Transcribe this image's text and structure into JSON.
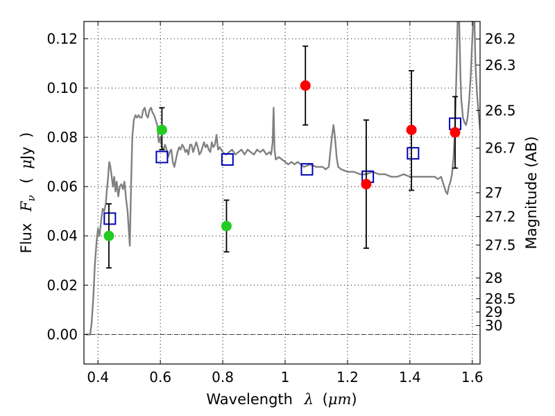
{
  "chart_data": {
    "type": "scatter",
    "title": "",
    "xlabel": {
      "text": "Wavelength",
      "symbol": "λ",
      "unit_open": "(",
      "unit": "μm",
      "unit_close": ")"
    },
    "ylabel": {
      "text": "Flux",
      "symbol": "F",
      "subscript": "ν",
      "unit_open": "(",
      "unit_prefix": "μ",
      "unit": "Jy",
      "unit_close": ")"
    },
    "y2label": "Magnitude (AB)",
    "xlim": [
      0.355,
      1.625
    ],
    "ylim": [
      -0.012,
      0.127
    ],
    "grid": "dotted",
    "zero_line": true,
    "x_ticks": [
      {
        "value": 0.4,
        "label": "0.4"
      },
      {
        "value": 0.6,
        "label": "0.6"
      },
      {
        "value": 0.8,
        "label": "0.8"
      },
      {
        "value": 1.0,
        "label": "1"
      },
      {
        "value": 1.2,
        "label": "1.2"
      },
      {
        "value": 1.4,
        "label": "1.4"
      },
      {
        "value": 1.6,
        "label": "1.6"
      }
    ],
    "y_ticks": [
      {
        "value": 0.0,
        "label": "0.00"
      },
      {
        "value": 0.02,
        "label": "0.02"
      },
      {
        "value": 0.04,
        "label": "0.04"
      },
      {
        "value": 0.06,
        "label": "0.06"
      },
      {
        "value": 0.08,
        "label": "0.08"
      },
      {
        "value": 0.1,
        "label": "0.10"
      },
      {
        "value": 0.12,
        "label": "0.12"
      }
    ],
    "mag_ticks": [
      {
        "label": "26.2",
        "flux": 0.1199
      },
      {
        "label": "26.3",
        "flux": 0.1093
      },
      {
        "label": "26.5",
        "flux": 0.0909
      },
      {
        "label": "26.7",
        "flux": 0.0756
      },
      {
        "label": "27",
        "flux": 0.0575
      },
      {
        "label": "27.2",
        "flux": 0.0478
      },
      {
        "label": "27.5",
        "flux": 0.0363
      },
      {
        "label": "28",
        "flux": 0.0229
      },
      {
        "label": "28.5",
        "flux": 0.0145
      },
      {
        "label": "29",
        "flux": 0.0091
      },
      {
        "label": "30",
        "flux": 0.0036
      }
    ],
    "series": [
      {
        "kind": "line",
        "color": "#808080",
        "points": [
          [
            0.36,
            0.0
          ],
          [
            0.37,
            0.0
          ],
          [
            0.375,
            0.0
          ],
          [
            0.38,
            0.005
          ],
          [
            0.385,
            0.015
          ],
          [
            0.39,
            0.028
          ],
          [
            0.395,
            0.037
          ],
          [
            0.4,
            0.043
          ],
          [
            0.405,
            0.04
          ],
          [
            0.41,
            0.046
          ],
          [
            0.415,
            0.051
          ],
          [
            0.42,
            0.05
          ],
          [
            0.425,
            0.053
          ],
          [
            0.428,
            0.058
          ],
          [
            0.432,
            0.063
          ],
          [
            0.436,
            0.07
          ],
          [
            0.44,
            0.068
          ],
          [
            0.444,
            0.064
          ],
          [
            0.448,
            0.06
          ],
          [
            0.452,
            0.064
          ],
          [
            0.456,
            0.058
          ],
          [
            0.46,
            0.062
          ],
          [
            0.465,
            0.056
          ],
          [
            0.47,
            0.06
          ],
          [
            0.475,
            0.061
          ],
          [
            0.48,
            0.059
          ],
          [
            0.485,
            0.062
          ],
          [
            0.49,
            0.055
          ],
          [
            0.495,
            0.05
          ],
          [
            0.5,
            0.04
          ],
          [
            0.502,
            0.036
          ],
          [
            0.506,
            0.06
          ],
          [
            0.51,
            0.08
          ],
          [
            0.515,
            0.087
          ],
          [
            0.52,
            0.089
          ],
          [
            0.525,
            0.088
          ],
          [
            0.53,
            0.089
          ],
          [
            0.535,
            0.088
          ],
          [
            0.54,
            0.088
          ],
          [
            0.545,
            0.091
          ],
          [
            0.55,
            0.092
          ],
          [
            0.555,
            0.089
          ],
          [
            0.56,
            0.088
          ],
          [
            0.565,
            0.091
          ],
          [
            0.57,
            0.092
          ],
          [
            0.575,
            0.09
          ],
          [
            0.58,
            0.089
          ],
          [
            0.585,
            0.087
          ],
          [
            0.59,
            0.085
          ],
          [
            0.595,
            0.078
          ],
          [
            0.6,
            0.08
          ],
          [
            0.605,
            0.076
          ],
          [
            0.61,
            0.075
          ],
          [
            0.615,
            0.077
          ],
          [
            0.62,
            0.075
          ],
          [
            0.625,
            0.072
          ],
          [
            0.63,
            0.074
          ],
          [
            0.635,
            0.075
          ],
          [
            0.64,
            0.07
          ],
          [
            0.645,
            0.068
          ],
          [
            0.65,
            0.071
          ],
          [
            0.655,
            0.074
          ],
          [
            0.66,
            0.076
          ],
          [
            0.665,
            0.075
          ],
          [
            0.67,
            0.077
          ],
          [
            0.675,
            0.076
          ],
          [
            0.68,
            0.074
          ],
          [
            0.685,
            0.075
          ],
          [
            0.69,
            0.073
          ],
          [
            0.695,
            0.077
          ],
          [
            0.7,
            0.077
          ],
          [
            0.705,
            0.074
          ],
          [
            0.71,
            0.076
          ],
          [
            0.715,
            0.078
          ],
          [
            0.72,
            0.076
          ],
          [
            0.725,
            0.073
          ],
          [
            0.73,
            0.074
          ],
          [
            0.735,
            0.076
          ],
          [
            0.74,
            0.078
          ],
          [
            0.745,
            0.076
          ],
          [
            0.75,
            0.077
          ],
          [
            0.755,
            0.075
          ],
          [
            0.76,
            0.074
          ],
          [
            0.765,
            0.078
          ],
          [
            0.77,
            0.076
          ],
          [
            0.775,
            0.077
          ],
          [
            0.78,
            0.081
          ],
          [
            0.785,
            0.075
          ],
          [
            0.79,
            0.076
          ],
          [
            0.8,
            0.074
          ],
          [
            0.81,
            0.073
          ],
          [
            0.82,
            0.074
          ],
          [
            0.83,
            0.075
          ],
          [
            0.84,
            0.073
          ],
          [
            0.85,
            0.074
          ],
          [
            0.86,
            0.075
          ],
          [
            0.87,
            0.073
          ],
          [
            0.88,
            0.075
          ],
          [
            0.89,
            0.074
          ],
          [
            0.9,
            0.073
          ],
          [
            0.91,
            0.075
          ],
          [
            0.92,
            0.074
          ],
          [
            0.93,
            0.075
          ],
          [
            0.94,
            0.073
          ],
          [
            0.95,
            0.074
          ],
          [
            0.955,
            0.073
          ],
          [
            0.96,
            0.078
          ],
          [
            0.963,
            0.092
          ],
          [
            0.966,
            0.075
          ],
          [
            0.97,
            0.071
          ],
          [
            0.98,
            0.072
          ],
          [
            0.99,
            0.071
          ],
          [
            1.0,
            0.07
          ],
          [
            1.01,
            0.069
          ],
          [
            1.02,
            0.07
          ],
          [
            1.03,
            0.069
          ],
          [
            1.04,
            0.07
          ],
          [
            1.05,
            0.069
          ],
          [
            1.06,
            0.068
          ],
          [
            1.08,
            0.069
          ],
          [
            1.1,
            0.068
          ],
          [
            1.12,
            0.068
          ],
          [
            1.13,
            0.067
          ],
          [
            1.14,
            0.068
          ],
          [
            1.15,
            0.08
          ],
          [
            1.155,
            0.085
          ],
          [
            1.16,
            0.08
          ],
          [
            1.165,
            0.072
          ],
          [
            1.17,
            0.068
          ],
          [
            1.18,
            0.067
          ],
          [
            1.2,
            0.066
          ],
          [
            1.22,
            0.066
          ],
          [
            1.24,
            0.065
          ],
          [
            1.26,
            0.065
          ],
          [
            1.28,
            0.066
          ],
          [
            1.3,
            0.065
          ],
          [
            1.32,
            0.065
          ],
          [
            1.34,
            0.064
          ],
          [
            1.36,
            0.064
          ],
          [
            1.38,
            0.065
          ],
          [
            1.4,
            0.064
          ],
          [
            1.42,
            0.064
          ],
          [
            1.44,
            0.064
          ],
          [
            1.46,
            0.064
          ],
          [
            1.48,
            0.064
          ],
          [
            1.49,
            0.063
          ],
          [
            1.5,
            0.064
          ],
          [
            1.505,
            0.062
          ],
          [
            1.51,
            0.06
          ],
          [
            1.515,
            0.058
          ],
          [
            1.52,
            0.057
          ],
          [
            1.525,
            0.06
          ],
          [
            1.53,
            0.062
          ],
          [
            1.535,
            0.065
          ],
          [
            1.54,
            0.072
          ],
          [
            1.545,
            0.085
          ],
          [
            1.55,
            0.11
          ],
          [
            1.553,
            0.127
          ],
          [
            1.558,
            0.127
          ],
          [
            1.562,
            0.105
          ],
          [
            1.565,
            0.095
          ],
          [
            1.57,
            0.088
          ],
          [
            1.575,
            0.086
          ],
          [
            1.58,
            0.085
          ],
          [
            1.585,
            0.088
          ],
          [
            1.59,
            0.095
          ],
          [
            1.595,
            0.105
          ],
          [
            1.6,
            0.12
          ],
          [
            1.603,
            0.127
          ],
          [
            1.607,
            0.127
          ],
          [
            1.61,
            0.11
          ],
          [
            1.615,
            0.098
          ],
          [
            1.62,
            0.09
          ],
          [
            1.625,
            0.083
          ]
        ]
      },
      {
        "kind": "open-square",
        "color": "#0000bb",
        "points": [
          [
            0.438,
            0.047
          ],
          [
            0.605,
            0.072
          ],
          [
            0.815,
            0.071
          ],
          [
            1.07,
            0.067
          ],
          [
            1.265,
            0.064
          ],
          [
            1.41,
            0.0735
          ],
          [
            1.545,
            0.0855
          ]
        ]
      },
      {
        "kind": "filled-circle",
        "color": "#22cc22",
        "points": [
          {
            "x": 0.435,
            "y": 0.04,
            "lo": 0.027,
            "hi": 0.053
          },
          {
            "x": 0.605,
            "y": 0.083,
            "lo": 0.075,
            "hi": 0.092
          },
          {
            "x": 0.812,
            "y": 0.044,
            "lo": 0.0335,
            "hi": 0.0545
          }
        ]
      },
      {
        "kind": "filled-circle",
        "color": "#ff0000",
        "points": [
          {
            "x": 1.065,
            "y": 0.101,
            "lo": 0.085,
            "hi": 0.117
          },
          {
            "x": 1.26,
            "y": 0.061,
            "lo": 0.035,
            "hi": 0.087
          },
          {
            "x": 1.405,
            "y": 0.083,
            "lo": 0.0585,
            "hi": 0.107
          },
          {
            "x": 1.545,
            "y": 0.082,
            "lo": 0.0675,
            "hi": 0.0965
          }
        ]
      }
    ]
  }
}
